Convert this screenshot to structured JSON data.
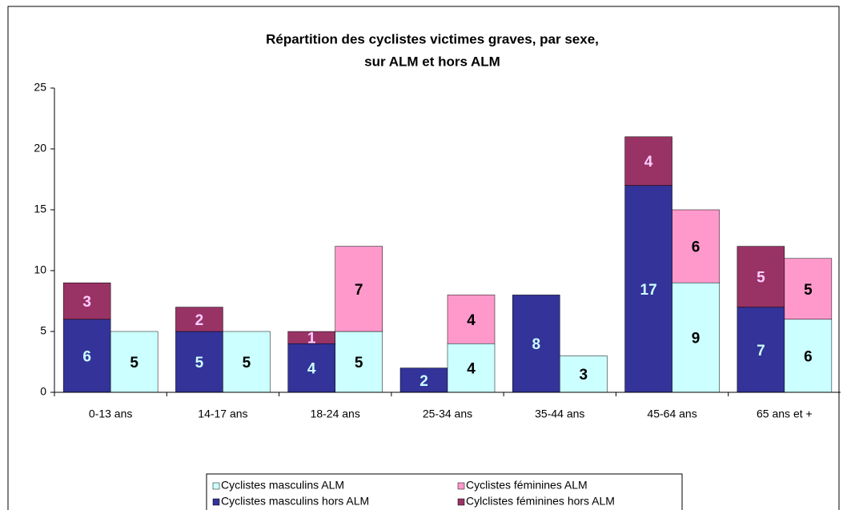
{
  "chart_data": {
    "type": "bar",
    "title": [
      "Répartition des cyclistes victimes graves, par sexe,",
      "sur ALM et hors ALM"
    ],
    "categories": [
      "0-13 ans",
      "14-17 ans",
      "18-24 ans",
      "25-34 ans",
      "35-44 ans",
      "45-64 ans",
      "65 ans et +"
    ],
    "series": [
      {
        "name": "Cyclistes masculins ALM",
        "color": "#ccffff",
        "label_color": "#000000",
        "stack": 2,
        "values": [
          5,
          5,
          5,
          4,
          3,
          9,
          6
        ]
      },
      {
        "name": "Cyclistes féminines ALM",
        "color": "#ff99cc",
        "label_color": "#000000",
        "stack": 2,
        "values": [
          null,
          null,
          7,
          4,
          null,
          6,
          5
        ]
      },
      {
        "name": "Cyclistes masculins hors ALM",
        "color": "#333399",
        "label_color": "#ccffff",
        "stack": 1,
        "values": [
          6,
          5,
          4,
          2,
          8,
          17,
          7
        ]
      },
      {
        "name": "Cylclistes féminines hors ALM",
        "color": "#993366",
        "label_color": "#ffccff",
        "stack": 1,
        "values": [
          3,
          2,
          1,
          null,
          null,
          4,
          5
        ]
      }
    ],
    "ylim": [
      0,
      25
    ],
    "yticks": [
      0,
      5,
      10,
      15,
      20,
      25
    ],
    "grid": false
  }
}
